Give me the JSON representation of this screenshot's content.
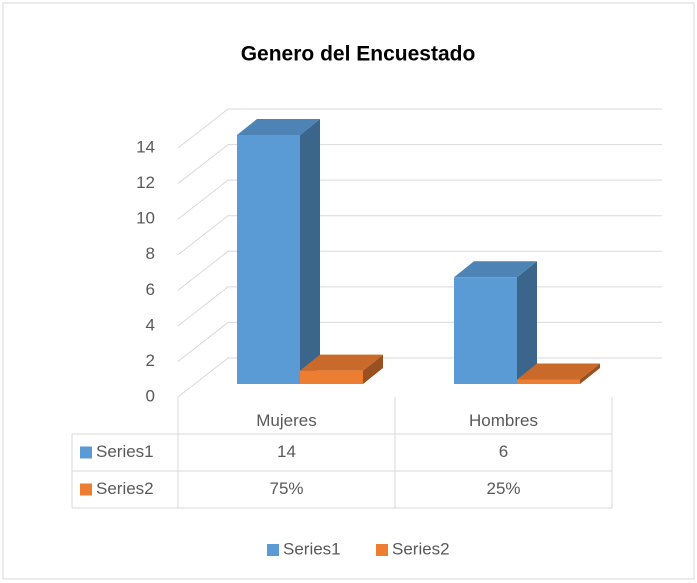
{
  "chart_data": {
    "type": "bar3d",
    "title": "Genero del Encuestado",
    "categories": [
      "Mujeres",
      "Hombres"
    ],
    "series": [
      {
        "name": "Series1",
        "color": "#5b9bd5",
        "values": [
          14,
          6
        ]
      },
      {
        "name": "Series2",
        "color": "#ed7d31",
        "values": [
          0.75,
          0.25
        ],
        "value_labels": [
          "75%",
          "25%"
        ]
      }
    ],
    "ylim": [
      0,
      14
    ],
    "yticks": [
      0,
      2,
      4,
      6,
      8,
      10,
      12,
      14
    ],
    "grid": true,
    "legend": "bottom",
    "data_table": true
  }
}
